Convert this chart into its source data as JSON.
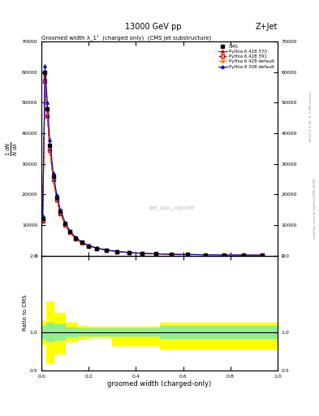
{
  "title_top": "13000 GeV pp",
  "title_right": "Z+Jet",
  "plot_title": "Groomed width λ_1¹  (charged only)  (CMS jet substructure)",
  "xlabel": "groomed width (charged-only)",
  "ylabel": "1/ mathrm{N} d mathrm{N}/dλ",
  "ylabel_ratio": "Ratio to CMS",
  "watermark": "CMS_2021_I1920187",
  "right_label": "Rivet 3.1.10, ≥ 2.6M events",
  "right_label2": "mcplots.cern.ch [arXiv:1306.3436]",
  "xlim": [
    0,
    1
  ],
  "ylim_main": [
    0,
    70000
  ],
  "ylim_ratio": [
    0.5,
    2.0
  ],
  "yticks_main": [
    0,
    10000,
    20000,
    30000,
    40000,
    50000,
    60000,
    70000
  ],
  "yticks_ratio": [
    0.5,
    1.0,
    2.0
  ],
  "cms_color": "#000000",
  "pythia6_370_color": "#cc0000",
  "pythia6_391_color": "#cc0000",
  "pythia6_default_color": "#ff8800",
  "pythia8_color": "#0000cc",
  "legend_entries": [
    "CMS",
    "Pythia 6.428 370",
    "Pythia 6.428 391",
    "Pythia 6.428 default",
    "Pythia 8.308 default"
  ],
  "x_data": [
    0.005,
    0.015,
    0.025,
    0.035,
    0.05,
    0.065,
    0.08,
    0.1,
    0.12,
    0.145,
    0.17,
    0.2,
    0.235,
    0.275,
    0.32,
    0.37,
    0.425,
    0.485,
    0.55,
    0.62,
    0.695,
    0.775,
    0.855,
    0.935
  ],
  "cms_y": [
    12000,
    60000,
    48000,
    36000,
    26000,
    19000,
    14500,
    10500,
    7800,
    5700,
    4300,
    3200,
    2400,
    1800,
    1350,
    1000,
    750,
    560,
    430,
    330,
    260,
    210,
    170,
    140
  ],
  "p6_370_y": [
    11500,
    58000,
    46000,
    35000,
    25000,
    18500,
    14000,
    10200,
    7600,
    5600,
    4200,
    3150,
    2380,
    1780,
    1330,
    990,
    740,
    555,
    425,
    328,
    258,
    208,
    168,
    138
  ],
  "p6_391_y": [
    11200,
    57000,
    45500,
    34500,
    24800,
    18200,
    13800,
    10100,
    7550,
    5550,
    4170,
    3120,
    2360,
    1760,
    1320,
    980,
    735,
    550,
    420,
    325,
    255,
    205,
    166,
    136
  ],
  "p6_default_y": [
    11800,
    59000,
    47000,
    35500,
    25500,
    18800,
    14200,
    10350,
    7700,
    5650,
    4250,
    3180,
    2400,
    1790,
    1340,
    995,
    745,
    558,
    428,
    330,
    260,
    210,
    170,
    139
  ],
  "p8_default_y": [
    13000,
    62000,
    50000,
    38000,
    27000,
    19800,
    15000,
    10900,
    8100,
    5950,
    4450,
    3320,
    2500,
    1860,
    1390,
    1030,
    770,
    575,
    440,
    338,
    265,
    214,
    173,
    142
  ],
  "x_ratio": [
    0.0,
    0.02,
    0.05,
    0.1,
    0.15,
    0.2,
    0.3,
    0.4,
    0.5,
    0.6,
    0.7,
    0.8,
    0.9,
    1.0
  ],
  "ratio_yellow_upper": [
    1.15,
    1.4,
    1.25,
    1.12,
    1.08,
    1.07,
    1.07,
    1.07,
    1.12,
    1.12,
    1.12,
    1.12,
    1.12,
    1.12
  ],
  "ratio_yellow_lower": [
    0.85,
    0.6,
    0.72,
    0.88,
    0.92,
    0.93,
    0.83,
    0.83,
    0.78,
    0.78,
    0.78,
    0.78,
    0.78,
    0.78
  ],
  "ratio_green_upper": [
    1.08,
    1.12,
    1.1,
    1.06,
    1.05,
    1.05,
    1.05,
    1.05,
    1.08,
    1.08,
    1.08,
    1.08,
    1.08,
    1.08
  ],
  "ratio_green_lower": [
    0.92,
    0.88,
    0.9,
    0.94,
    0.95,
    0.95,
    0.95,
    0.95,
    0.92,
    0.92,
    0.92,
    0.92,
    0.92,
    0.92
  ]
}
